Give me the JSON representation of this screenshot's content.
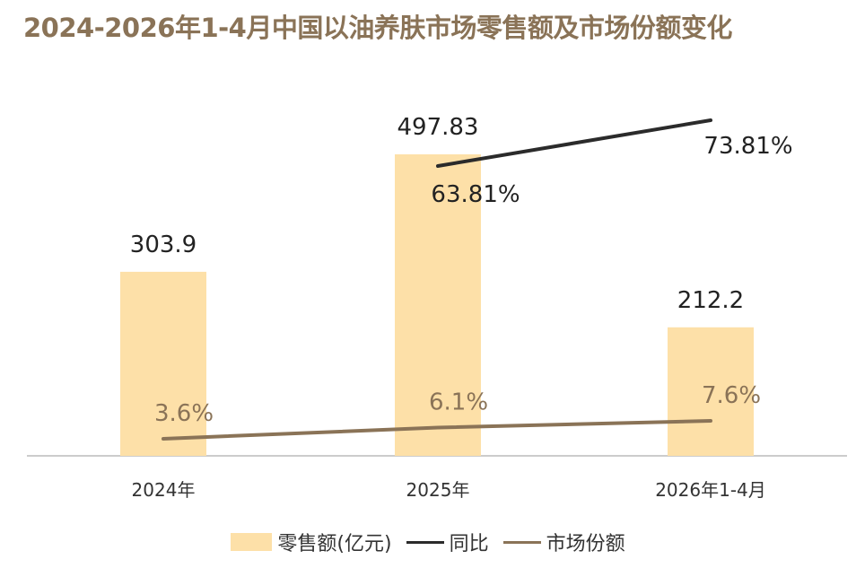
{
  "title": "2024-2026年1-4月中国以油养肤市场零售额及市场份额变化",
  "colors": {
    "bar": "#fde0a8",
    "yoy_line": "#2b2b2b",
    "share_line": "#8a7357",
    "axis": "#cccccc",
    "title": "#8a7357"
  },
  "legend": {
    "bar_label": "零售额(亿元)",
    "yoy_label": "同比",
    "share_label": "市场份额"
  },
  "chart_data": {
    "type": "bar",
    "categories": [
      "2024年",
      "2025年",
      "2026年1-4月"
    ],
    "series": [
      {
        "name": "零售额(亿元)",
        "type": "bar",
        "values": [
          303.9,
          497.83,
          212.2
        ],
        "labels": [
          "303.9",
          "497.83",
          "212.2"
        ]
      },
      {
        "name": "同比",
        "type": "line",
        "values": [
          null,
          63.81,
          73.81
        ],
        "labels": [
          "",
          "63.81%",
          "73.81%"
        ]
      },
      {
        "name": "市场份额",
        "type": "line",
        "values": [
          3.6,
          6.1,
          7.6
        ],
        "labels": [
          "3.6%",
          "6.1%",
          "7.6%"
        ]
      }
    ],
    "legend_position": "bottom",
    "grid": false
  }
}
